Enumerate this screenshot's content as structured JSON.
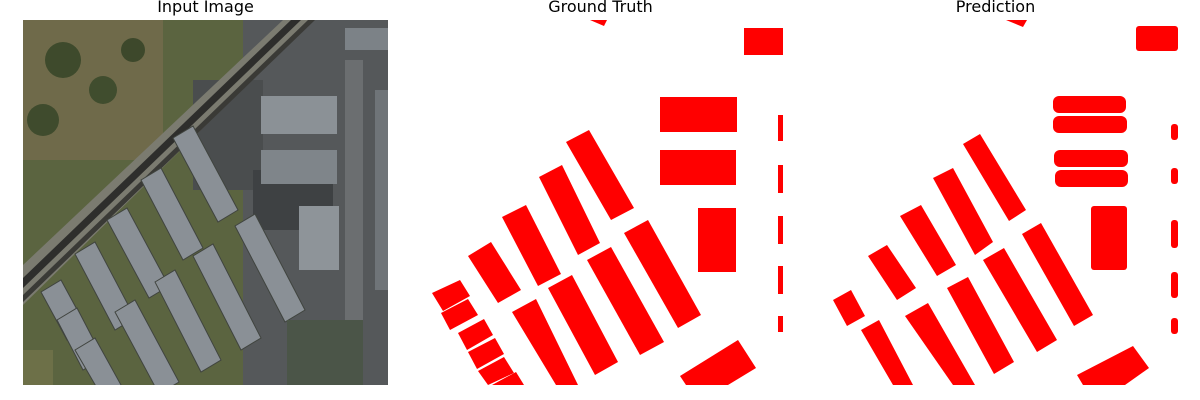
{
  "titles": {
    "input": "Input Image",
    "ground_truth": "Ground Truth",
    "prediction": "Prediction"
  },
  "colors": {
    "mask": "#ff0000",
    "background": "#ffffff",
    "roof": "#8a9096",
    "grass": "#5e6a3e",
    "pavement": "#4a4d4e"
  }
}
